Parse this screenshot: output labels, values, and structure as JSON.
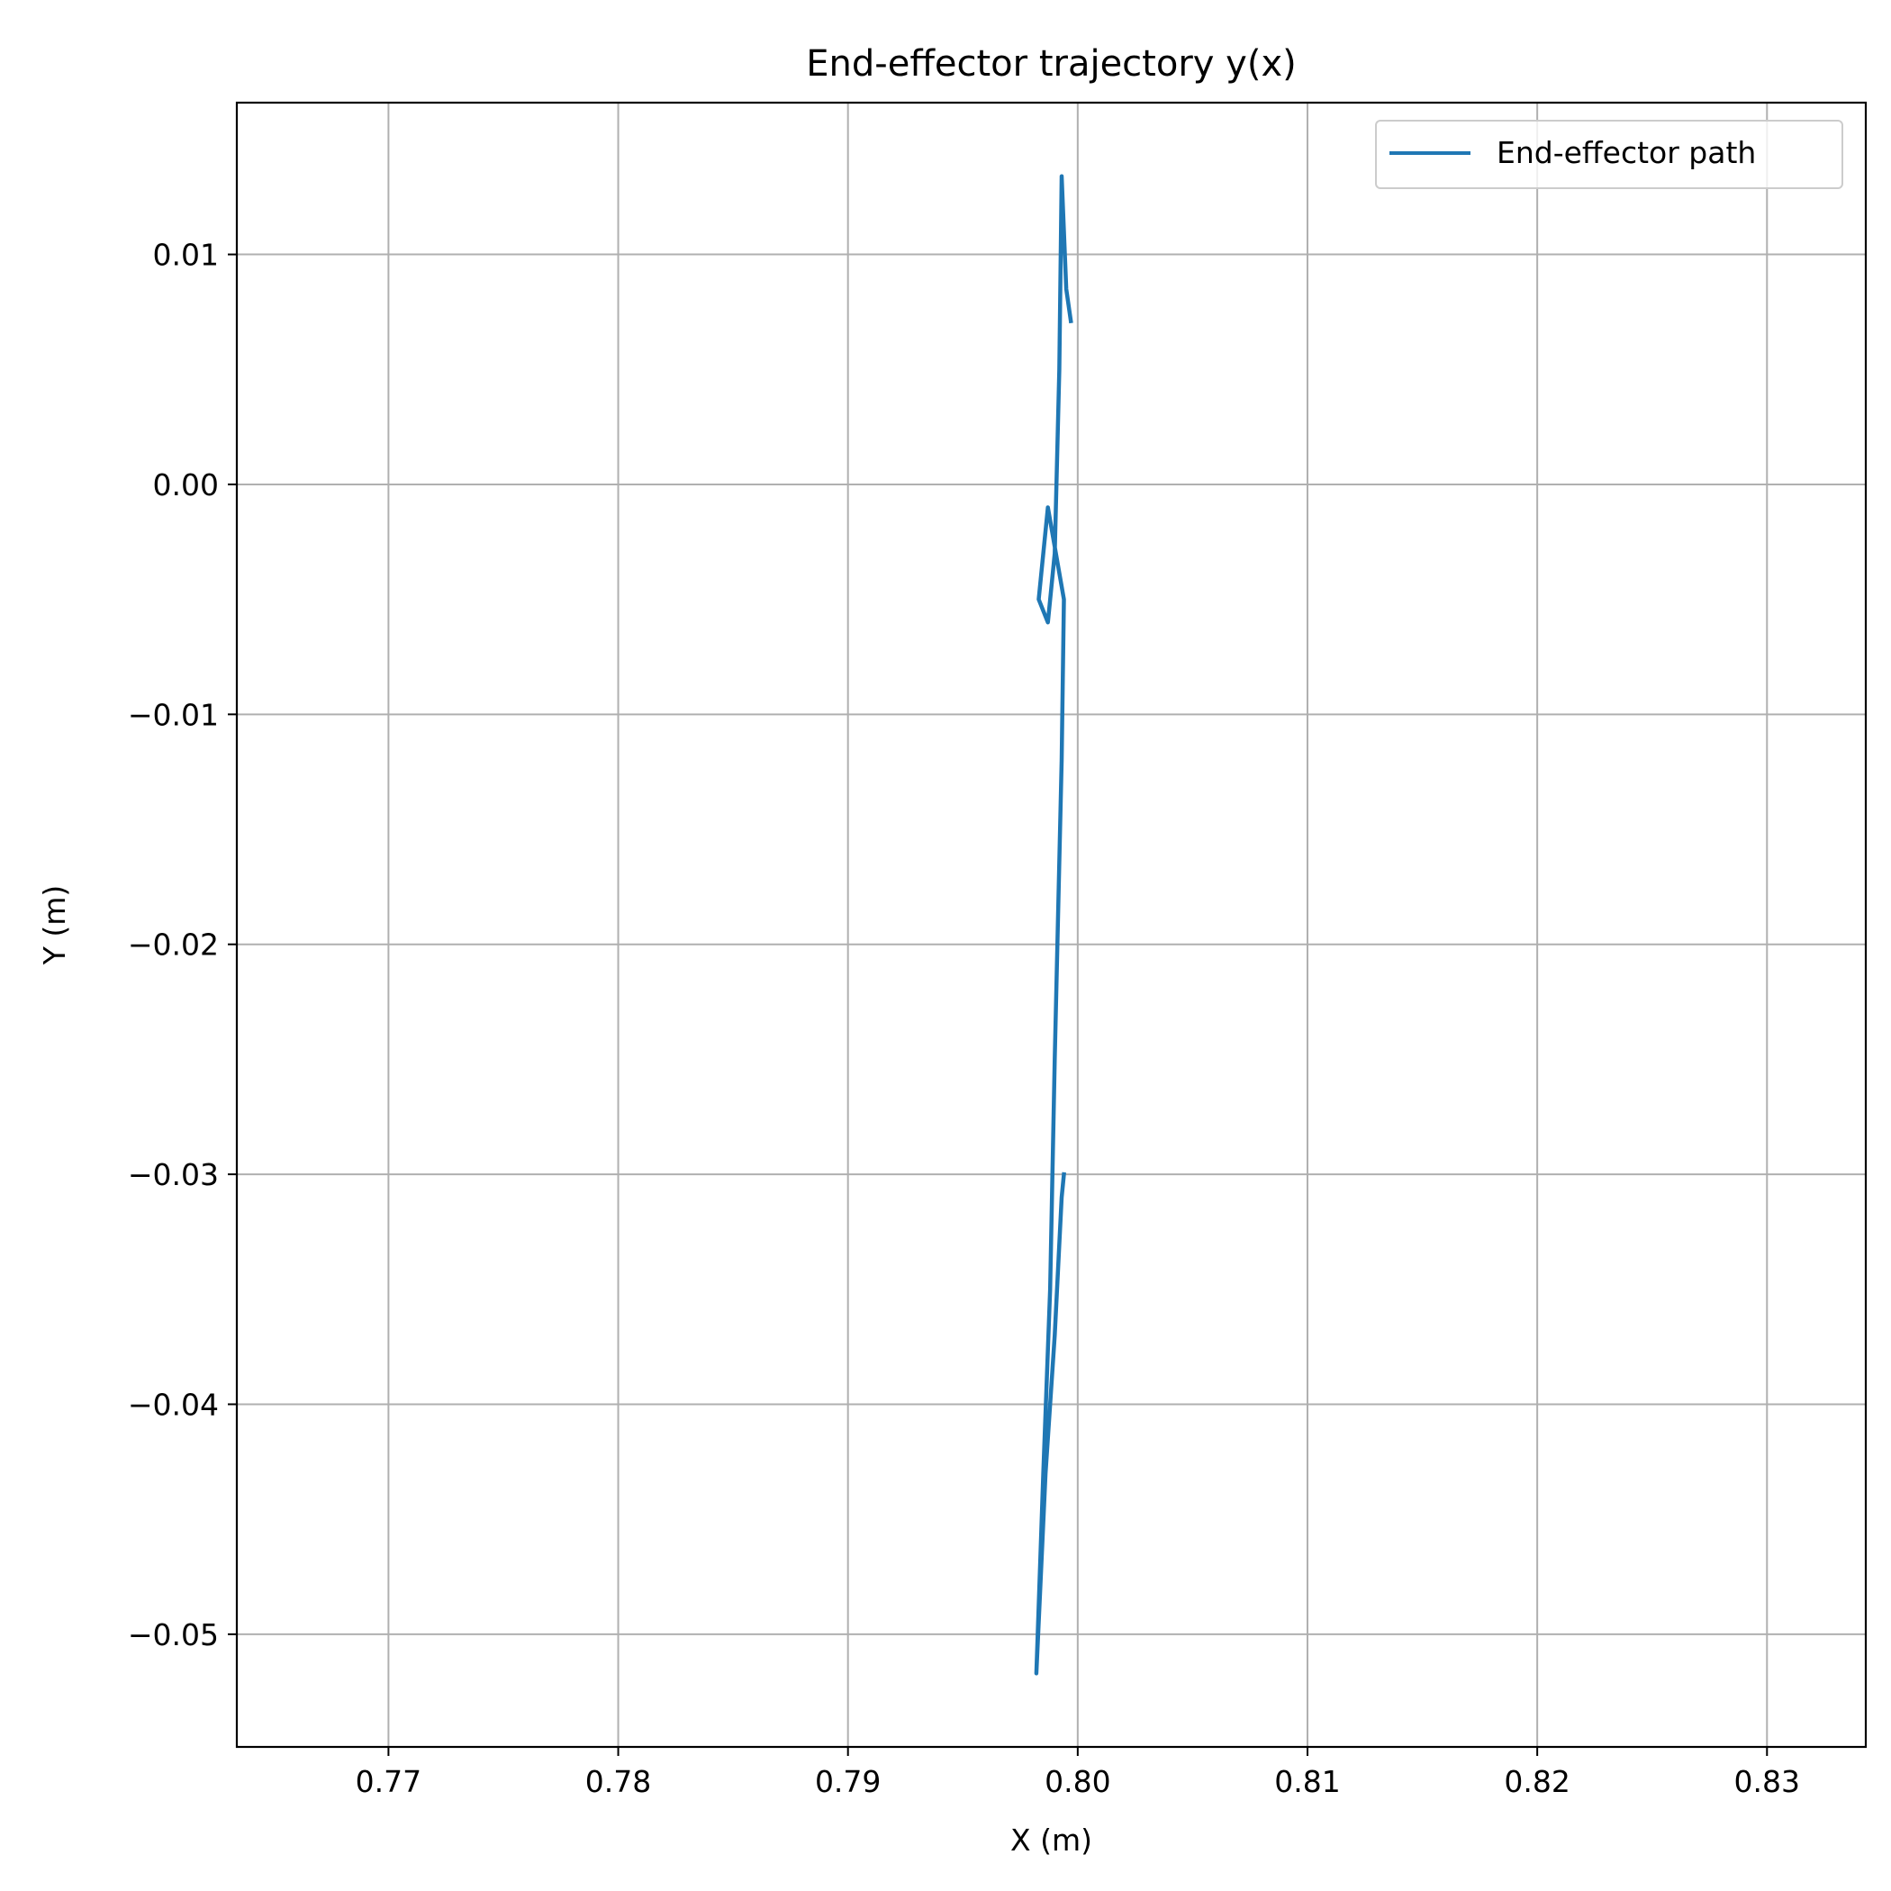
{
  "chart_data": {
    "type": "line",
    "title": "End-effector trajectory y(x)",
    "xlabel": "X (m)",
    "ylabel": "Y (m)",
    "xlim": [
      0.7634,
      0.8343
    ],
    "ylim": [
      -0.0549,
      0.0166
    ],
    "xticks": [
      0.77,
      0.78,
      0.79,
      0.8,
      0.81,
      0.82,
      0.83
    ],
    "xtick_labels": [
      "0.77",
      "0.78",
      "0.79",
      "0.80",
      "0.81",
      "0.82",
      "0.83"
    ],
    "yticks": [
      0.01,
      0.0,
      -0.01,
      -0.02,
      -0.03,
      -0.04,
      -0.05
    ],
    "ytick_labels": [
      "0.01",
      "0.00",
      "−0.01",
      "−0.02",
      "−0.03",
      "−0.04",
      "−0.05"
    ],
    "grid": true,
    "legend": "top-right",
    "series": [
      {
        "name": "End-effector path",
        "color": "#1f77b4",
        "x": [
          0.7994,
          0.7993,
          0.799,
          0.7986,
          0.7982,
          0.7985,
          0.7988,
          0.799,
          0.7993,
          0.7994,
          0.7987,
          0.7983,
          0.7987,
          0.799,
          0.7992,
          0.7993,
          0.7995,
          0.7997
        ],
        "y": [
          -0.03,
          -0.031,
          -0.037,
          -0.043,
          -0.0517,
          -0.043,
          -0.035,
          -0.025,
          -0.012,
          -0.005,
          -0.001,
          -0.005,
          -0.006,
          -0.003,
          0.005,
          0.0134,
          0.0085,
          0.0071
        ]
      }
    ]
  }
}
